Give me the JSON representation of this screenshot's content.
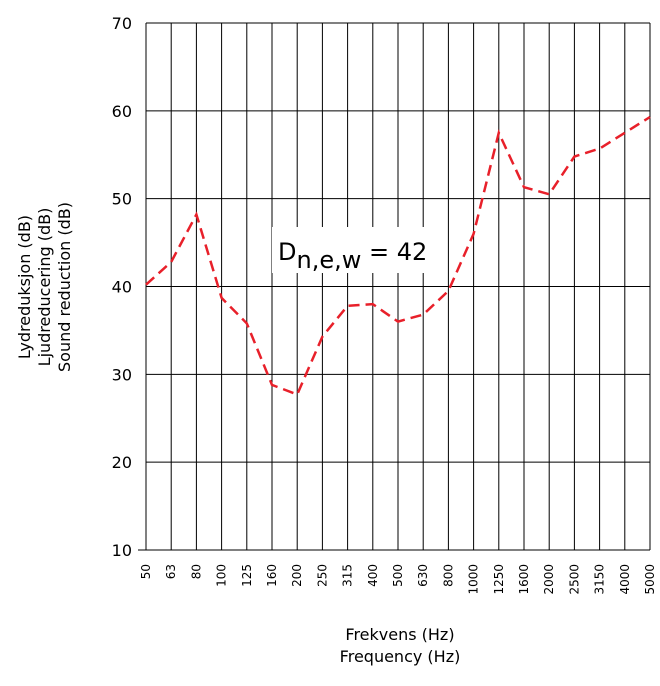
{
  "chart_data": {
    "type": "line",
    "xlabel_lines": [
      "Frekvens (Hz)",
      "Frequency (Hz)"
    ],
    "ylabel_lines": [
      "Lydreduksjon (dB)",
      "Ljudreducering (dB)",
      "Sound reduction (dB)"
    ],
    "categories": [
      "50",
      "63",
      "80",
      "100",
      "125",
      "160",
      "200",
      "250",
      "315",
      "400",
      "500",
      "630",
      "800",
      "1000",
      "1250",
      "1600",
      "2000",
      "2500",
      "3150",
      "4000",
      "5000"
    ],
    "ylim": [
      10,
      70
    ],
    "yticks": [
      "10",
      "20",
      "30",
      "40",
      "50",
      "60",
      "70"
    ],
    "grid": true,
    "annotation": {
      "main": "D",
      "subscript": "n,e,w",
      "suffix": " = 42"
    },
    "series": [
      {
        "color": "#e8202a",
        "style": "dashed",
        "values": [
          40.2,
          42.8,
          48.2,
          38.7,
          35.8,
          28.8,
          27.7,
          34.3,
          37.8,
          38.0,
          36.0,
          36.8,
          39.5,
          46.0,
          57.5,
          51.3,
          50.5,
          54.8,
          55.7,
          57.5,
          59.3
        ]
      }
    ]
  }
}
